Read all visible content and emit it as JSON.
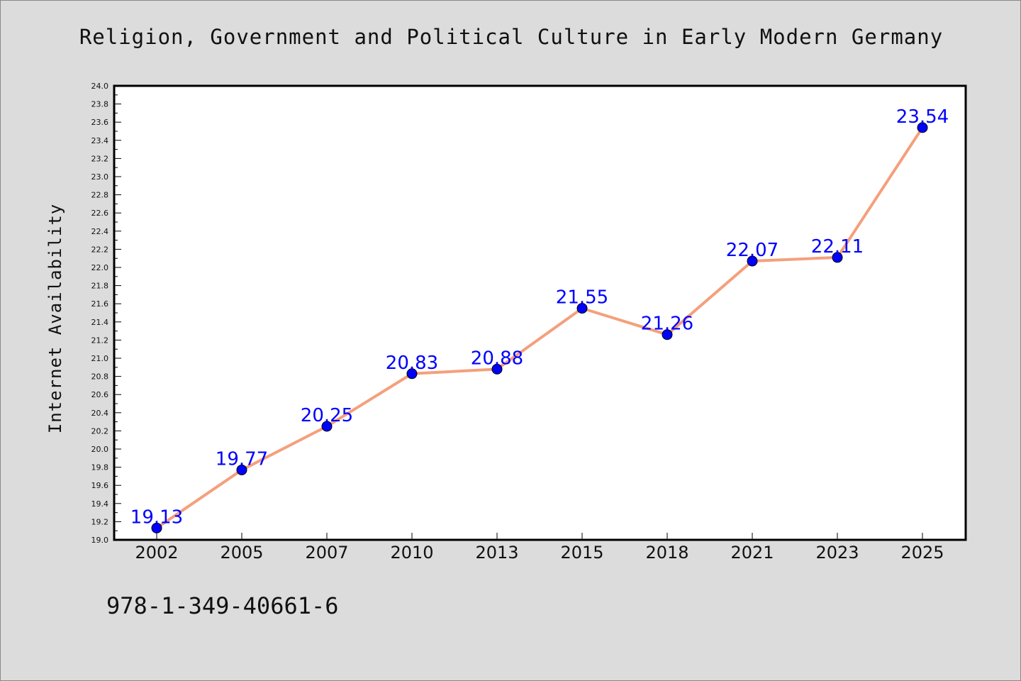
{
  "chart_data": {
    "type": "line",
    "title": "Religion, Government and Political Culture in Early Modern Germany",
    "xlabel": "",
    "ylabel": "Internet Availability",
    "categories": [
      "2002",
      "2005",
      "2007",
      "2010",
      "2013",
      "2015",
      "2018",
      "2021",
      "2023",
      "2025"
    ],
    "series": [
      {
        "values": [
          19.13,
          19.77,
          20.25,
          20.83,
          20.88,
          21.55,
          21.26,
          22.07,
          22.11,
          23.54
        ],
        "line_color": "#f4a07c",
        "marker_color": "#0000ff"
      }
    ],
    "data_labels": [
      "19.13",
      "19.77",
      "20.25",
      "20.83",
      "20.88",
      "21.55",
      "21.26",
      "22.07",
      "22.11",
      "23.54"
    ],
    "ylim": [
      19.0,
      24.0
    ],
    "yticks": [
      "19.0",
      "19.2",
      "19.4",
      "19.6",
      "19.8",
      "20.0",
      "20.2",
      "20.4",
      "20.6",
      "20.8",
      "21.0",
      "21.2",
      "21.4",
      "21.6",
      "21.8",
      "22.0",
      "22.2",
      "22.4",
      "22.6",
      "22.8",
      "23.0",
      "23.2",
      "23.4",
      "23.6",
      "23.8",
      "24.0"
    ],
    "grid": false,
    "legend": "none"
  },
  "footer": {
    "isbn": "978-1-349-40661-6"
  }
}
